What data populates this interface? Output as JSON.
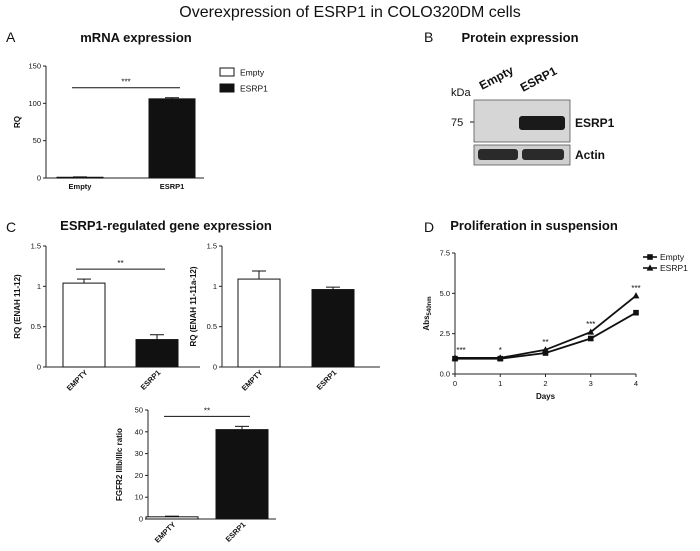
{
  "figure_title": "Overexpression of ESRP1 in COLO320DM cells",
  "panels": {
    "A": {
      "letter": "A",
      "title": "mRNA expression"
    },
    "B": {
      "letter": "B",
      "title": "Protein expression",
      "kda_label": "kDa",
      "marker": "75",
      "lanes": [
        "Empty",
        "ESRP1"
      ],
      "bands": [
        "ESRP1",
        "Actin"
      ]
    },
    "C": {
      "letter": "C",
      "title": "ESRP1-regulated gene expression"
    },
    "D": {
      "letter": "D",
      "title": "Proliferation in suspension"
    }
  },
  "colors": {
    "empty": "#ffffff",
    "esrp1": "#111111",
    "axis": "#222222"
  },
  "chart_data": [
    {
      "id": "A",
      "type": "bar",
      "categories": [
        "Empty",
        "ESRP1"
      ],
      "values": [
        1,
        106
      ],
      "errors": [
        0.5,
        1.5
      ],
      "fills": [
        "empty",
        "esrp1"
      ],
      "ylabel": "RQ",
      "ylim": [
        0,
        150
      ],
      "yticks": [
        0,
        50,
        100,
        150
      ],
      "significance": "***",
      "legend": [
        "Empty",
        "ESRP1"
      ]
    },
    {
      "id": "C1",
      "type": "bar",
      "categories": [
        "EMPTY",
        "ESRP1"
      ],
      "values": [
        1.04,
        0.34
      ],
      "errors": [
        0.05,
        0.06
      ],
      "fills": [
        "empty",
        "esrp1"
      ],
      "ylabel": "RQ (ENAH 11-12)",
      "ylim": [
        0,
        1.5
      ],
      "yticks": [
        0,
        0.5,
        1.0,
        1.5
      ],
      "significance": "**"
    },
    {
      "id": "C2",
      "type": "bar",
      "categories": [
        "EMPTY",
        "ESRP1"
      ],
      "values": [
        1.09,
        0.96
      ],
      "errors": [
        0.1,
        0.03
      ],
      "fills": [
        "empty",
        "esrp1"
      ],
      "ylabel": "RQ (ENAH 11-11a-12)",
      "ylim": [
        0,
        1.5
      ],
      "yticks": [
        0,
        0.5,
        1.0,
        1.5
      ],
      "significance": ""
    },
    {
      "id": "C3",
      "type": "bar",
      "categories": [
        "EMPTY",
        "ESRP1"
      ],
      "values": [
        1,
        41
      ],
      "errors": [
        0.3,
        1.5
      ],
      "fills": [
        "empty",
        "esrp1"
      ],
      "ylabel": "FGFR2 IIIb/IIIc ratio",
      "ylim": [
        0,
        50
      ],
      "yticks": [
        0,
        10,
        20,
        30,
        40,
        50
      ],
      "significance": "**"
    },
    {
      "id": "D",
      "type": "line",
      "x": [
        0,
        1,
        2,
        3,
        4
      ],
      "xticks": [
        0,
        1,
        2,
        3,
        4
      ],
      "xlim": [
        0,
        4
      ],
      "series": [
        {
          "name": "Empty",
          "values": [
            0.95,
            0.95,
            1.3,
            2.2,
            3.8
          ],
          "marker": "square"
        },
        {
          "name": "ESRP1",
          "values": [
            1.0,
            1.0,
            1.5,
            2.6,
            4.85
          ],
          "marker": "triangle"
        }
      ],
      "significance": [
        "***",
        "*",
        "**",
        "***",
        "***"
      ],
      "xlabel": "Days",
      "ylabel": "Abs",
      "ylabel_sub": "540nm",
      "ylim": [
        0,
        7.5
      ],
      "yticks": [
        "0.0",
        "2.5",
        "5.0",
        "7.5"
      ]
    }
  ]
}
